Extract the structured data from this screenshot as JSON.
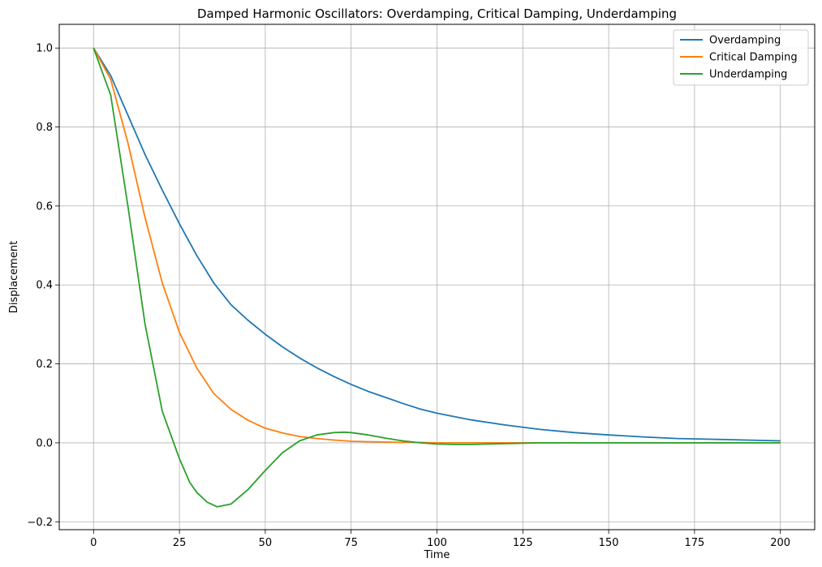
{
  "chart_data": {
    "type": "line",
    "title": "Damped Harmonic Oscillators: Overdamping, Critical Damping, Underdamping",
    "xlabel": "Time",
    "ylabel": "Displacement",
    "xlim": [
      -10,
      210
    ],
    "ylim": [
      -0.22,
      1.06
    ],
    "xticks": [
      0,
      25,
      50,
      75,
      100,
      125,
      150,
      175,
      200
    ],
    "xtick_labels": [
      "0",
      "25",
      "50",
      "75",
      "100",
      "125",
      "150",
      "175",
      "200"
    ],
    "yticks": [
      -0.2,
      0.0,
      0.2,
      0.4,
      0.6,
      0.8,
      1.0
    ],
    "ytick_labels": [
      "−0.2",
      "0.0",
      "0.2",
      "0.4",
      "0.6",
      "0.8",
      "1.0"
    ],
    "grid": true,
    "legend_position": "top-right",
    "series": [
      {
        "name": "Overdamping",
        "color": "#1f77b4",
        "x": [
          0,
          5,
          10,
          15,
          20,
          25,
          30,
          35,
          40,
          45,
          50,
          55,
          60,
          65,
          70,
          75,
          80,
          85,
          90,
          95,
          100,
          110,
          120,
          130,
          140,
          150,
          160,
          170,
          180,
          190,
          200
        ],
        "y": [
          1.0,
          0.93,
          0.83,
          0.73,
          0.64,
          0.555,
          0.475,
          0.405,
          0.35,
          0.31,
          0.275,
          0.243,
          0.215,
          0.19,
          0.168,
          0.148,
          0.13,
          0.115,
          0.1,
          0.086,
          0.075,
          0.058,
          0.045,
          0.034,
          0.026,
          0.02,
          0.015,
          0.011,
          0.009,
          0.007,
          0.005
        ]
      },
      {
        "name": "Critical Damping",
        "color": "#ff7f0e",
        "x": [
          0,
          5,
          10,
          15,
          20,
          25,
          30,
          35,
          40,
          45,
          50,
          55,
          60,
          65,
          70,
          75,
          80,
          85,
          90,
          95,
          100,
          110,
          120,
          130,
          140,
          150,
          160,
          170,
          180,
          190,
          200
        ],
        "y": [
          1.0,
          0.92,
          0.76,
          0.57,
          0.405,
          0.28,
          0.19,
          0.125,
          0.085,
          0.057,
          0.037,
          0.025,
          0.016,
          0.011,
          0.007,
          0.004,
          0.003,
          0.002,
          0.001,
          0.001,
          0.0,
          0.0,
          0.0,
          0.0,
          0.0,
          0.0,
          0.0,
          0.0,
          0.0,
          0.0,
          0.0
        ]
      },
      {
        "name": "Underdamping",
        "color": "#2ca02c",
        "x": [
          0,
          5,
          10,
          15,
          20,
          25,
          28,
          30,
          33,
          36,
          40,
          45,
          50,
          55,
          60,
          65,
          70,
          73,
          75,
          80,
          85,
          90,
          95,
          100,
          105,
          110,
          115,
          120,
          130,
          140,
          150,
          160,
          170,
          180,
          190,
          200
        ],
        "y": [
          1.0,
          0.88,
          0.6,
          0.3,
          0.08,
          -0.04,
          -0.1,
          -0.125,
          -0.15,
          -0.162,
          -0.155,
          -0.118,
          -0.07,
          -0.025,
          0.005,
          0.02,
          0.026,
          0.027,
          0.026,
          0.02,
          0.012,
          0.005,
          0.0,
          -0.003,
          -0.004,
          -0.004,
          -0.003,
          -0.002,
          0.0,
          0.0,
          0.0,
          0.0,
          0.0,
          0.0,
          0.0,
          0.0
        ]
      }
    ]
  }
}
